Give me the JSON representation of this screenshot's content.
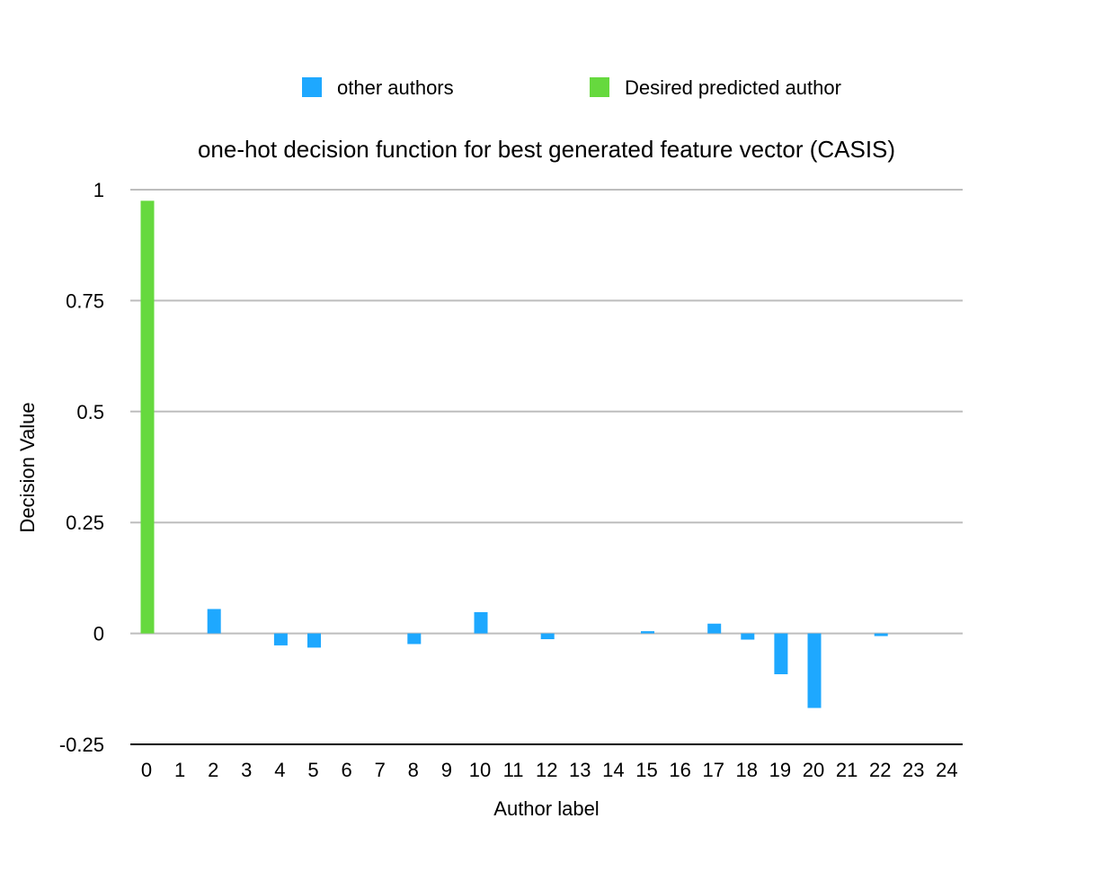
{
  "chart_data": {
    "type": "bar",
    "title": "one-hot decision function for best generated feature vector (CASIS)",
    "xlabel": "Author label",
    "ylabel": "Decision Value",
    "ylim": [
      -0.25,
      1
    ],
    "yticks": [
      -0.25,
      0,
      0.25,
      0.5,
      0.75,
      1
    ],
    "ytick_labels": [
      "-0.25",
      "0",
      "0.25",
      "0.5",
      "0.75",
      "1"
    ],
    "grid": true,
    "legend_position": "top",
    "categories": [
      "0",
      "1",
      "2",
      "3",
      "4",
      "5",
      "6",
      "7",
      "8",
      "9",
      "10",
      "11",
      "12",
      "13",
      "14",
      "15",
      "16",
      "17",
      "18",
      "19",
      "20",
      "21",
      "22",
      "23",
      "24"
    ],
    "series": [
      {
        "name": "other authors",
        "color": "#1EA8FF",
        "values": [
          null,
          0,
          0.055,
          0,
          -0.027,
          -0.032,
          0,
          0,
          -0.024,
          0,
          0.048,
          0,
          -0.013,
          0,
          0,
          0.005,
          0,
          0.022,
          -0.014,
          -0.092,
          -0.168,
          0,
          -0.006,
          0,
          0
        ]
      },
      {
        "name": "Desired predicted author",
        "color": "#66D93E",
        "values": [
          0.975,
          null,
          null,
          null,
          null,
          null,
          null,
          null,
          null,
          null,
          null,
          null,
          null,
          null,
          null,
          null,
          null,
          null,
          null,
          null,
          null,
          null,
          null,
          null,
          null
        ]
      }
    ]
  }
}
